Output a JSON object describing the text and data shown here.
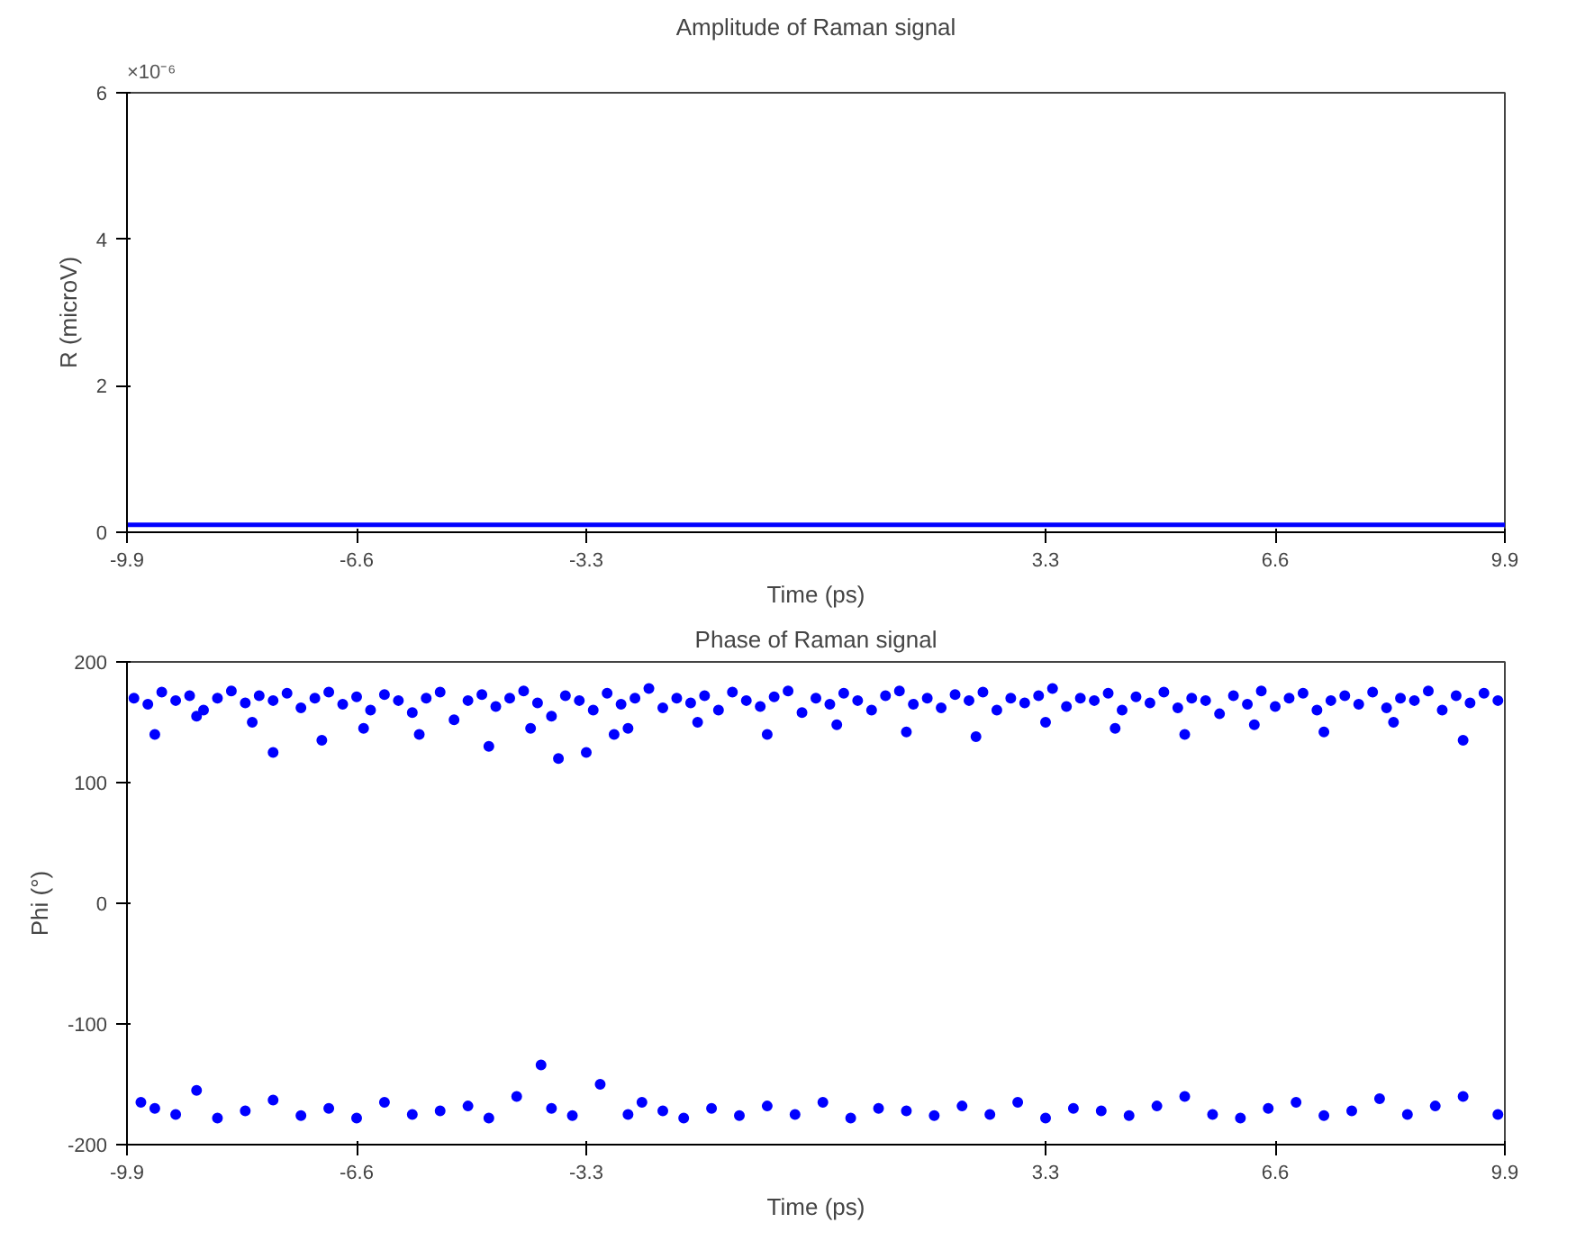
{
  "chart_data": [
    {
      "type": "line",
      "title": "Amplitude of Raman signal",
      "xlabel": "Time (ps)",
      "ylabel": "R (microV)",
      "annotations": [
        "×10⁻⁶"
      ],
      "xlim": [
        -9.9,
        9.9
      ],
      "xticks": [
        -9.9,
        -6.6,
        -3.3,
        3.3,
        6.6,
        9.9
      ],
      "ylim": [
        0,
        6
      ],
      "yticks": [
        0,
        2,
        4,
        6
      ],
      "grid": false,
      "x": [
        -9.9,
        9.9
      ],
      "series": [
        {
          "color": "#0000ff",
          "values": [
            0.1,
            0.1
          ]
        }
      ]
    },
    {
      "type": "scatter",
      "title": "Phase of Raman signal",
      "xlabel": "Time (ps)",
      "ylabel": "Phi (°)",
      "marker": "circle",
      "grid": false,
      "xlim": [
        -9.9,
        9.9
      ],
      "xticks": [
        -9.9,
        -6.6,
        -3.3,
        3.3,
        6.6,
        9.9
      ],
      "ylim": [
        -200,
        200
      ],
      "yticks": [
        -200,
        -100,
        0,
        100,
        200
      ],
      "series": [
        {
          "color": "#0000ff",
          "x": [
            -9.8,
            -9.6,
            -9.4,
            -9.2,
            -9.0,
            -8.8,
            -8.6,
            -8.4,
            -8.2,
            -8.0,
            -7.8,
            -7.6,
            -7.4,
            -7.2,
            -7.0,
            -6.8,
            -6.6,
            -6.4,
            -6.2,
            -6.0,
            -5.8,
            -5.6,
            -5.4,
            -5.2,
            -5.0,
            -4.8,
            -4.6,
            -4.4,
            -4.2,
            -4.0,
            -3.8,
            -3.6,
            -3.4,
            -3.2,
            -3.0,
            -2.8,
            -2.6,
            -2.4,
            -2.2,
            -2.0,
            -1.8,
            -1.6,
            -1.4,
            -1.2,
            -1.0,
            -0.8,
            -0.6,
            -0.4,
            -0.2,
            0.0,
            0.2,
            0.4,
            0.6,
            0.8,
            1.0,
            1.2,
            1.4,
            1.6,
            1.8,
            2.0,
            2.2,
            2.4,
            2.6,
            2.8,
            3.0,
            3.2,
            3.4,
            3.6,
            3.8,
            4.0,
            4.2,
            4.4,
            4.6,
            4.8,
            5.0,
            5.2,
            5.4,
            5.6,
            5.8,
            6.0,
            6.2,
            6.4,
            6.6,
            6.8,
            7.0,
            7.2,
            7.4,
            7.6,
            7.8,
            8.0,
            8.2,
            8.4,
            8.6,
            8.8,
            9.0,
            9.2,
            9.4,
            9.6,
            9.8,
            -9.5,
            -8.9,
            -8.1,
            -7.1,
            -6.5,
            -5.7,
            -4.7,
            -3.7,
            -2.7,
            -1.7,
            -0.7,
            0.3,
            1.3,
            2.3,
            3.3,
            4.3,
            5.3,
            6.3,
            7.3,
            8.3,
            9.3,
            -7.8,
            -4.1,
            -3.3,
            -2.9,
            -9.7,
            -9.5,
            -9.2,
            -8.9,
            -8.6,
            -8.2,
            -7.8,
            -7.4,
            -7.0,
            -6.6,
            -6.2,
            -5.8,
            -5.4,
            -5.0,
            -4.7,
            -4.3,
            -3.95,
            -3.8,
            -3.5,
            -3.1,
            -2.7,
            -2.5,
            -2.2,
            -1.9,
            -1.5,
            -1.1,
            -0.7,
            -0.3,
            0.1,
            0.5,
            0.9,
            1.3,
            1.7,
            2.1,
            2.5,
            2.9,
            3.3,
            3.7,
            4.1,
            4.5,
            4.9,
            5.3,
            5.7,
            6.1,
            6.5,
            6.9,
            7.3,
            7.7,
            8.1,
            8.5,
            8.9,
            9.3,
            9.8
          ],
          "values": [
            170,
            165,
            175,
            168,
            172,
            160,
            170,
            176,
            166,
            172,
            168,
            174,
            162,
            170,
            175,
            165,
            171,
            160,
            173,
            168,
            158,
            170,
            175,
            152,
            168,
            173,
            163,
            170,
            176,
            166,
            155,
            172,
            168,
            160,
            174,
            165,
            170,
            178,
            162,
            170,
            166,
            172,
            160,
            175,
            168,
            163,
            171,
            176,
            158,
            170,
            165,
            174,
            168,
            160,
            172,
            176,
            165,
            170,
            162,
            173,
            168,
            175,
            160,
            170,
            166,
            172,
            178,
            163,
            170,
            168,
            174,
            160,
            171,
            166,
            175,
            162,
            170,
            168,
            157,
            172,
            165,
            176,
            163,
            170,
            174,
            160,
            168,
            172,
            165,
            175,
            162,
            170,
            168,
            176,
            160,
            172,
            166,
            174,
            168,
            140,
            155,
            150,
            135,
            145,
            140,
            130,
            120,
            145,
            150,
            140,
            148,
            142,
            138,
            150,
            145,
            140,
            148,
            142,
            150,
            135,
            125,
            145,
            125,
            140,
            -165,
            -170,
            -175,
            -155,
            -178,
            -172,
            -163,
            -176,
            -170,
            -178,
            -165,
            -175,
            -172,
            -168,
            -178,
            -160,
            -134,
            -170,
            -176,
            -150,
            -175,
            -165,
            -172,
            -178,
            -170,
            -176,
            -168,
            -175,
            -165,
            -178,
            -170,
            -172,
            -176,
            -168,
            -175,
            -165,
            -178,
            -170,
            -172,
            -176,
            -168,
            -160,
            -175,
            -178,
            -170,
            -165,
            -176,
            -172,
            -162,
            -175,
            -168,
            -160,
            -175
          ]
        }
      ]
    }
  ]
}
